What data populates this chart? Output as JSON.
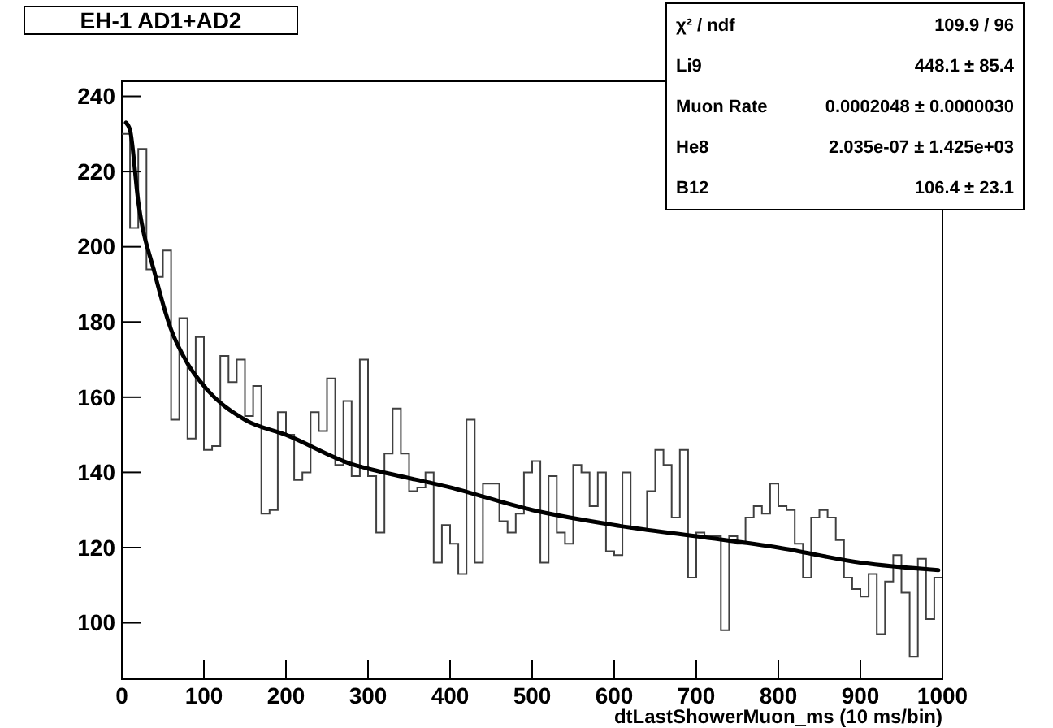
{
  "chart_data": {
    "type": "histogram",
    "title": "EH-1 AD1+AD2",
    "xlabel": "dtLastShowerMuon_ms (10 ms/bin)",
    "bins": [
      0,
      10,
      20,
      30,
      40,
      50,
      60,
      70,
      80,
      90,
      100,
      110,
      120,
      130,
      140,
      150,
      160,
      170,
      180,
      190,
      200,
      210,
      220,
      230,
      240,
      250,
      260,
      270,
      280,
      290,
      300,
      310,
      320,
      330,
      340,
      350,
      360,
      370,
      380,
      390,
      400,
      410,
      420,
      430,
      440,
      450,
      460,
      470,
      480,
      490,
      500,
      510,
      520,
      530,
      540,
      550,
      560,
      570,
      580,
      590,
      600,
      610,
      620,
      630,
      640,
      650,
      660,
      670,
      680,
      690,
      700,
      710,
      720,
      730,
      740,
      750,
      760,
      770,
      780,
      790,
      800,
      810,
      820,
      830,
      840,
      850,
      860,
      870,
      880,
      890,
      900,
      910,
      920,
      930,
      940,
      950,
      960,
      970,
      980,
      990,
      1000
    ],
    "series": [
      {
        "color": "#404040",
        "values": [
          230,
          205,
          226,
          194,
          192,
          199,
          154,
          181,
          149,
          176,
          146,
          147,
          171,
          164,
          170,
          155,
          163,
          129,
          130,
          156,
          150,
          138,
          140,
          156,
          151,
          165,
          142,
          159,
          139,
          170,
          139,
          124,
          145,
          157,
          145,
          135,
          136,
          140,
          116,
          126,
          121,
          113,
          154,
          116,
          137,
          137,
          127,
          124,
          129,
          140,
          143,
          116,
          139,
          124,
          121,
          142,
          140,
          131,
          140,
          119,
          118,
          140,
          125,
          125,
          135,
          146,
          142,
          128,
          146,
          112,
          124,
          123,
          123,
          98,
          123,
          121,
          128,
          131,
          129,
          137,
          131,
          130,
          121,
          112,
          128,
          130,
          128,
          122,
          112,
          109,
          107,
          113,
          97,
          111,
          118,
          108,
          91,
          117,
          101,
          112
        ]
      },
      {
        "type": "line",
        "color": "#000000",
        "x": [
          5,
          10,
          20,
          40,
          60,
          80,
          100,
          150,
          200,
          283,
          300,
          400,
          500,
          600,
          700,
          800,
          900,
          995
        ],
        "values": [
          233,
          231,
          212,
          193,
          178,
          169,
          163,
          154,
          150,
          142,
          141,
          136,
          130,
          126,
          123,
          120,
          116,
          114
        ]
      }
    ],
    "xlim": [
      0,
      1000
    ],
    "ylim": [
      85,
      244
    ],
    "xticks": [
      0,
      100,
      200,
      300,
      400,
      500,
      600,
      700,
      800,
      900,
      1000
    ],
    "yticks": [
      100,
      120,
      140,
      160,
      180,
      200,
      220,
      240
    ],
    "annotations": [
      "χ² / ndf",
      "109.9 / 96",
      "Li9",
      "448.1 ± 85.4",
      "Muon Rate",
      "0.0002048 ± 0.0000030",
      "He8",
      "2.035e-07 ± 1.425e+03",
      "B12",
      "106.4 ± 23.1"
    ]
  }
}
